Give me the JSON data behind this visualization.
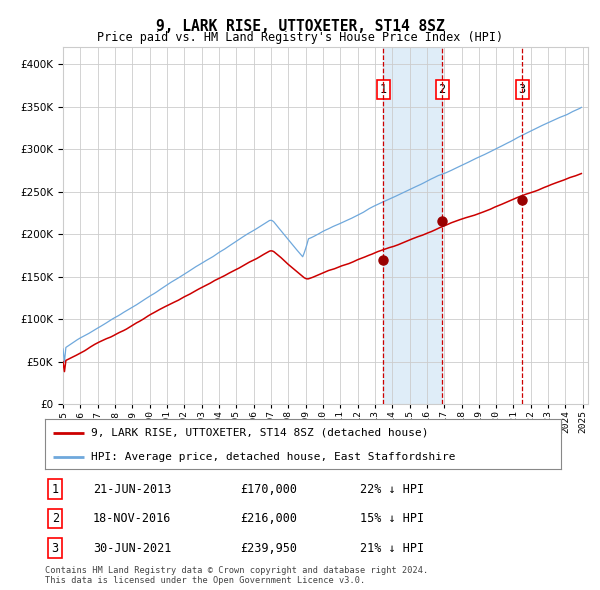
{
  "title": "9, LARK RISE, UTTOXETER, ST14 8SZ",
  "subtitle": "Price paid vs. HM Land Registry's House Price Index (HPI)",
  "hpi_color": "#6fa8dc",
  "price_color": "#cc0000",
  "sale_marker_color": "#990000",
  "vline_color": "#cc0000",
  "shade_color": "#daeaf7",
  "grid_color": "#cccccc",
  "bg_color": "#ffffff",
  "ylim": [
    0,
    420000
  ],
  "yticks": [
    0,
    50000,
    100000,
    150000,
    200000,
    250000,
    300000,
    350000,
    400000
  ],
  "ytick_labels": [
    "£0",
    "£50K",
    "£100K",
    "£150K",
    "£200K",
    "£250K",
    "£300K",
    "£350K",
    "£400K"
  ],
  "purchases": [
    {
      "date_num": 2013.472,
      "price": 170000,
      "label": "1"
    },
    {
      "date_num": 2016.88,
      "price": 216000,
      "label": "2"
    },
    {
      "date_num": 2021.493,
      "price": 239950,
      "label": "3"
    }
  ],
  "table_rows": [
    {
      "num": "1",
      "date": "21-JUN-2013",
      "price": "£170,000",
      "info": "22% ↓ HPI"
    },
    {
      "num": "2",
      "date": "18-NOV-2016",
      "price": "£216,000",
      "info": "15% ↓ HPI"
    },
    {
      "num": "3",
      "date": "30-JUN-2021",
      "price": "£239,950",
      "info": "21% ↓ HPI"
    }
  ],
  "legend_line1": "9, LARK RISE, UTTOXETER, ST14 8SZ (detached house)",
  "legend_line2": "HPI: Average price, detached house, East Staffordshire",
  "footnote": "Contains HM Land Registry data © Crown copyright and database right 2024.\nThis data is licensed under the Open Government Licence v3.0.",
  "x_start_year": 1995,
  "x_end_year": 2025
}
